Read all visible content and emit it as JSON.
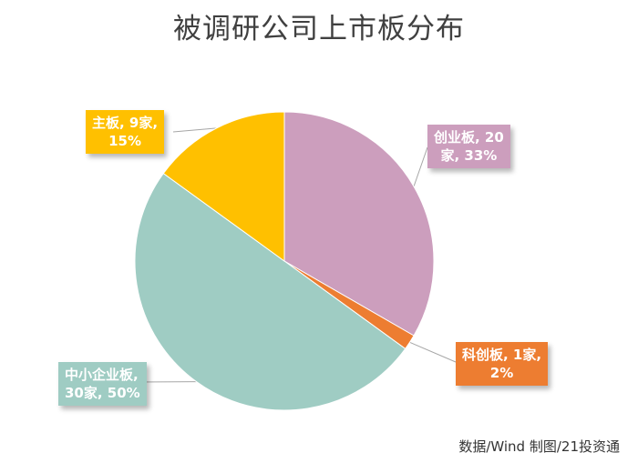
{
  "chart_data": {
    "type": "pie",
    "title": "被调研公司上市板分布",
    "categories": [
      "创业板",
      "科创板",
      "中小企业板",
      "主板"
    ],
    "values": [
      20,
      1,
      30,
      9
    ],
    "percents": [
      33,
      2,
      50,
      15
    ],
    "data_labels": [
      [
        "创业板, 20",
        "家, 33%"
      ],
      [
        "科创板, 1家,",
        "2%"
      ],
      [
        "中小企业板,",
        "30家, 50%"
      ],
      [
        "主板, 9家,",
        "15%"
      ]
    ],
    "colors": [
      "#cc9ebd",
      "#ed7d31",
      "#9fccc3",
      "#ffc000"
    ],
    "start_angle_deg": 0,
    "direction": "clockwise",
    "legend": "none"
  },
  "source_note": "数据/Wind  制图/21投资通"
}
